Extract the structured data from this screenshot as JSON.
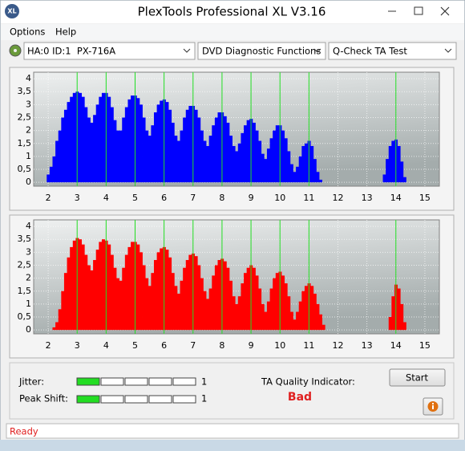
{
  "window": {
    "title": "PlexTools Professional XL V3.16",
    "icon": "XL"
  },
  "menu": [
    "Options",
    "Help"
  ],
  "toolbar": {
    "drive": "HA:0 ID:1  PX-716A",
    "function": "DVD Diagnostic Functions",
    "test": "Q-Check TA Test"
  },
  "chart_data": [
    {
      "type": "bar",
      "color": "#0000ff",
      "x": [
        2,
        2.1,
        2.2,
        2.3,
        2.4,
        2.5,
        2.6,
        2.7,
        2.8,
        2.9,
        3,
        3.1,
        3.2,
        3.3,
        3.4,
        3.5,
        3.6,
        3.7,
        3.8,
        3.9,
        4,
        4.1,
        4.2,
        4.3,
        4.4,
        4.5,
        4.6,
        4.7,
        4.8,
        4.9,
        5,
        5.1,
        5.2,
        5.3,
        5.4,
        5.5,
        5.6,
        5.7,
        5.8,
        5.9,
        6,
        6.1,
        6.2,
        6.3,
        6.4,
        6.5,
        6.6,
        6.7,
        6.8,
        6.9,
        7,
        7.1,
        7.2,
        7.3,
        7.4,
        7.5,
        7.6,
        7.7,
        7.8,
        7.9,
        8,
        8.1,
        8.2,
        8.3,
        8.4,
        8.5,
        8.6,
        8.7,
        8.8,
        8.9,
        9,
        9.1,
        9.2,
        9.3,
        9.4,
        9.5,
        9.6,
        9.7,
        9.8,
        9.9,
        10,
        10.1,
        10.2,
        10.3,
        10.4,
        10.5,
        10.6,
        10.7,
        10.8,
        10.9,
        11,
        11.1,
        11.2,
        11.3,
        11.4,
        11.5,
        11.6,
        11.7,
        11.8,
        11.9,
        12,
        12.1,
        12.2,
        12.3,
        12.4,
        12.5,
        12.6,
        12.7,
        12.8,
        12.9,
        13,
        13.1,
        13.2,
        13.3,
        13.4,
        13.5,
        13.6,
        13.7,
        13.8,
        13.9,
        14,
        14.1,
        14.2,
        14.3,
        14.4
      ],
      "values": [
        0.3,
        0.6,
        1,
        1.6,
        2,
        2.5,
        2.8,
        3.1,
        3.3,
        3.45,
        3.5,
        3.45,
        3.3,
        2.9,
        2.5,
        2.3,
        2.6,
        3,
        3.3,
        3.45,
        3.45,
        3.3,
        2.9,
        2.4,
        2,
        2,
        2.5,
        2.9,
        3.2,
        3.35,
        3.35,
        3.25,
        3,
        2.5,
        2,
        1.8,
        2.2,
        2.7,
        3,
        3.15,
        3.2,
        3.1,
        2.8,
        2.3,
        1.8,
        1.6,
        2,
        2.5,
        2.8,
        2.95,
        2.95,
        2.8,
        2.5,
        2,
        1.6,
        1.4,
        1.8,
        2.2,
        2.5,
        2.7,
        2.7,
        2.55,
        2.3,
        1.8,
        1.4,
        1.2,
        1.5,
        1.9,
        2.2,
        2.4,
        2.45,
        2.3,
        2,
        1.6,
        1.1,
        0.9,
        1.3,
        1.7,
        2,
        2.2,
        2.2,
        2,
        1.7,
        1.2,
        0.7,
        0.4,
        0.6,
        1,
        1.4,
        1.5,
        1.6,
        1.4,
        0.9,
        0.4,
        0.1,
        0,
        0,
        0,
        0,
        0,
        0,
        0,
        0,
        0,
        0,
        0,
        0,
        0,
        0,
        0,
        0,
        0,
        0,
        0,
        0,
        0,
        0.3,
        0.9,
        1.4,
        1.6,
        1.65,
        1.4,
        0.8,
        0.2,
        0
      ],
      "xlim": [
        1.5,
        15.5
      ],
      "ylim": [
        -0.15,
        4.25
      ],
      "xticks": [
        2,
        3,
        4,
        5,
        6,
        7,
        8,
        9,
        10,
        11,
        12,
        13,
        14,
        15
      ],
      "yticks": [
        {
          "value": 4,
          "label": "4"
        },
        {
          "value": 3.5,
          "label": "3,5"
        },
        {
          "value": 3,
          "label": "3"
        },
        {
          "value": 2.5,
          "label": "2,5"
        },
        {
          "value": 2,
          "label": "2"
        },
        {
          "value": 1.5,
          "label": "1,5"
        },
        {
          "value": 1,
          "label": "1"
        },
        {
          "value": 0.5,
          "label": "0,5"
        },
        {
          "value": 0,
          "label": "0"
        }
      ],
      "grid": true,
      "highlight_x": [
        3,
        4,
        5,
        6,
        7,
        8,
        9,
        10,
        11,
        14
      ],
      "highlight_color": "#22dd22"
    },
    {
      "type": "bar",
      "color": "#ff0000",
      "x": [
        2,
        2.1,
        2.2,
        2.3,
        2.4,
        2.5,
        2.6,
        2.7,
        2.8,
        2.9,
        3,
        3.1,
        3.2,
        3.3,
        3.4,
        3.5,
        3.6,
        3.7,
        3.8,
        3.9,
        4,
        4.1,
        4.2,
        4.3,
        4.4,
        4.5,
        4.6,
        4.7,
        4.8,
        4.9,
        5,
        5.1,
        5.2,
        5.3,
        5.4,
        5.5,
        5.6,
        5.7,
        5.8,
        5.9,
        6,
        6.1,
        6.2,
        6.3,
        6.4,
        6.5,
        6.6,
        6.7,
        6.8,
        6.9,
        7,
        7.1,
        7.2,
        7.3,
        7.4,
        7.5,
        7.6,
        7.7,
        7.8,
        7.9,
        8,
        8.1,
        8.2,
        8.3,
        8.4,
        8.5,
        8.6,
        8.7,
        8.8,
        8.9,
        9,
        9.1,
        9.2,
        9.3,
        9.4,
        9.5,
        9.6,
        9.7,
        9.8,
        9.9,
        10,
        10.1,
        10.2,
        10.3,
        10.4,
        10.5,
        10.6,
        10.7,
        10.8,
        10.9,
        11,
        11.1,
        11.2,
        11.3,
        11.4,
        11.5,
        11.6,
        11.7,
        11.8,
        11.9,
        12,
        12.1,
        12.2,
        12.3,
        12.4,
        12.5,
        12.6,
        12.7,
        12.8,
        12.9,
        13,
        13.1,
        13.2,
        13.3,
        13.4,
        13.5,
        13.6,
        13.7,
        13.8,
        13.9,
        14,
        14.1,
        14.2,
        14.3,
        14.4
      ],
      "values": [
        0,
        0,
        0.1,
        0.3,
        0.8,
        1.5,
        2.2,
        2.8,
        3.2,
        3.45,
        3.55,
        3.5,
        3.3,
        2.9,
        2.5,
        2.3,
        2.7,
        3.1,
        3.4,
        3.5,
        3.45,
        3.3,
        2.9,
        2.4,
        2,
        1.9,
        2.4,
        2.9,
        3.2,
        3.4,
        3.4,
        3.3,
        3,
        2.5,
        2,
        1.7,
        2.2,
        2.7,
        3,
        3.15,
        3.2,
        3.1,
        2.8,
        2.2,
        1.7,
        1.4,
        1.9,
        2.4,
        2.7,
        2.9,
        2.95,
        2.85,
        2.5,
        2,
        1.5,
        1.2,
        1.6,
        2.1,
        2.5,
        2.7,
        2.75,
        2.65,
        2.4,
        1.9,
        1.3,
        1,
        1.3,
        1.8,
        2.2,
        2.4,
        2.5,
        2.4,
        2.1,
        1.6,
        1,
        0.7,
        1.1,
        1.6,
        2,
        2.2,
        2.25,
        2.1,
        1.8,
        1.3,
        0.7,
        0.4,
        0.7,
        1.1,
        1.5,
        1.7,
        1.8,
        1.7,
        1.4,
        1,
        0.6,
        0.2,
        0,
        0,
        0,
        0,
        0,
        0,
        0,
        0,
        0,
        0,
        0,
        0,
        0,
        0,
        0,
        0,
        0,
        0,
        0,
        0,
        0,
        0,
        0.5,
        1.3,
        1.75,
        1.6,
        1,
        0.3,
        0
      ],
      "xlim": [
        1.5,
        15.5
      ],
      "ylim": [
        -0.15,
        4.25
      ],
      "xticks": [
        2,
        3,
        4,
        5,
        6,
        7,
        8,
        9,
        10,
        11,
        12,
        13,
        14,
        15
      ],
      "yticks": [
        {
          "value": 4,
          "label": "4"
        },
        {
          "value": 3.5,
          "label": "3,5"
        },
        {
          "value": 3,
          "label": "3"
        },
        {
          "value": 2.5,
          "label": "2,5"
        },
        {
          "value": 2,
          "label": "2"
        },
        {
          "value": 1.5,
          "label": "1,5"
        },
        {
          "value": 1,
          "label": "1"
        },
        {
          "value": 0.5,
          "label": "0,5"
        },
        {
          "value": 0,
          "label": "0"
        }
      ],
      "grid": true,
      "highlight_x": [
        3,
        4,
        5,
        6,
        7,
        8,
        9,
        10,
        11,
        14
      ],
      "highlight_color": "#22dd22"
    }
  ],
  "results": {
    "jitter": {
      "label": "Jitter:",
      "value": 1
    },
    "peak_shift": {
      "label": "Peak Shift:",
      "value": 1
    },
    "ta_quality": {
      "label": "TA Quality Indicator:",
      "value": "Bad"
    }
  },
  "buttons": {
    "start": "Start"
  },
  "status": "Ready"
}
